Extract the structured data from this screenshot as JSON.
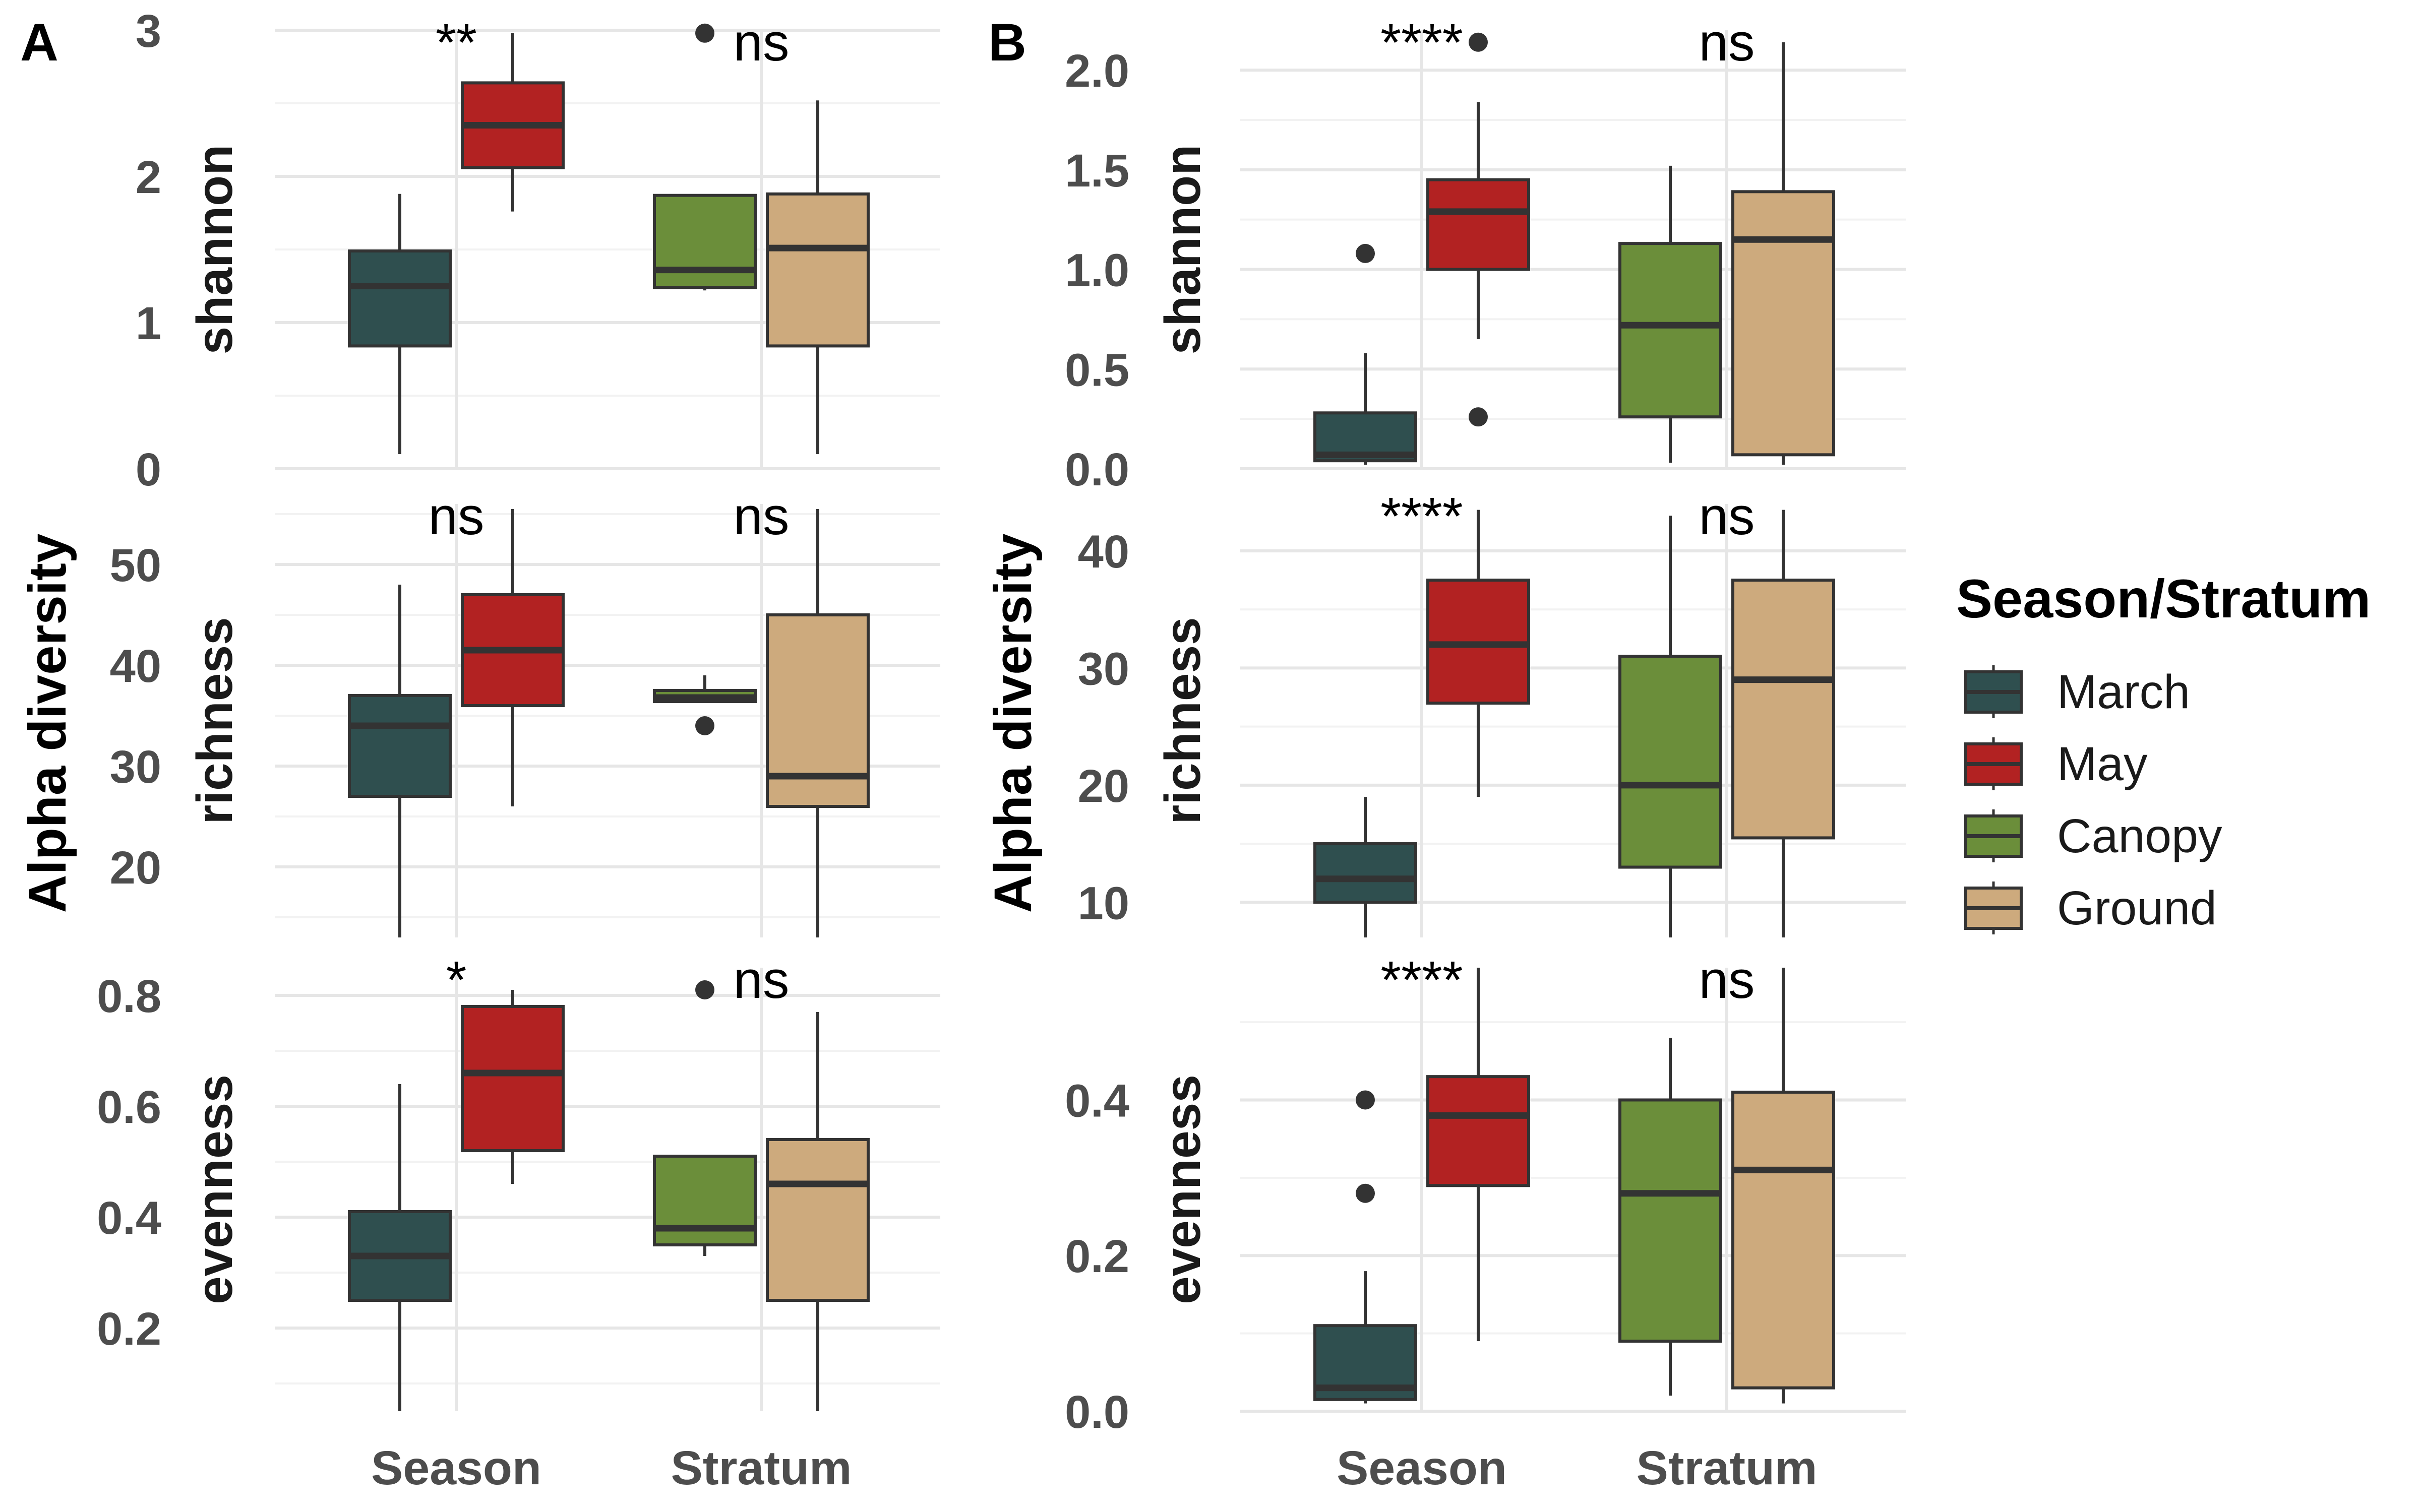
{
  "figure": {
    "panels": [
      "A",
      "B"
    ],
    "ylabel": "Alpha diversity",
    "xcategories": [
      "Season",
      "Stratum"
    ]
  },
  "legend": {
    "title": "Season/Stratum",
    "items": [
      {
        "label": "March",
        "color": "#2f4f4f"
      },
      {
        "label": "May",
        "color": "#b22222"
      },
      {
        "label": "Canopy",
        "color": "#6b8e3a"
      },
      {
        "label": "Ground",
        "color": "#cdaa7d"
      }
    ]
  },
  "chart_data": [
    {
      "type": "box",
      "panel": "A",
      "metric": "shannon",
      "ylim": [
        0,
        3
      ],
      "ticks": [
        0,
        1,
        2,
        3
      ],
      "tick_labels": [
        "0",
        "1",
        "2",
        "3"
      ],
      "categories": [
        "Season",
        "Stratum"
      ],
      "significance": [
        "**",
        "ns"
      ],
      "boxes": [
        {
          "group": "March",
          "category": "Season",
          "min": 0.1,
          "q1": 0.84,
          "median": 1.25,
          "q3": 1.49,
          "max": 1.88,
          "outliers": []
        },
        {
          "group": "May",
          "category": "Season",
          "min": 1.76,
          "q1": 2.06,
          "median": 2.35,
          "q3": 2.64,
          "max": 2.98,
          "outliers": []
        },
        {
          "group": "Canopy",
          "category": "Stratum",
          "min": 1.22,
          "q1": 1.24,
          "median": 1.36,
          "q3": 1.87,
          "max": 1.87,
          "outliers": [
            2.98
          ]
        },
        {
          "group": "Ground",
          "category": "Stratum",
          "min": 0.1,
          "q1": 0.84,
          "median": 1.51,
          "q3": 1.88,
          "max": 2.52,
          "outliers": []
        }
      ]
    },
    {
      "type": "box",
      "panel": "A",
      "metric": "richness",
      "ylim": [
        13,
        56
      ],
      "ticks": [
        20,
        30,
        40,
        50
      ],
      "tick_labels": [
        "20",
        "30",
        "40",
        "50"
      ],
      "categories": [
        "Season",
        "Stratum"
      ],
      "significance": [
        "ns",
        "ns"
      ],
      "boxes": [
        {
          "group": "March",
          "category": "Season",
          "min": 13,
          "q1": 27,
          "median": 34,
          "q3": 37,
          "max": 48,
          "outliers": []
        },
        {
          "group": "May",
          "category": "Season",
          "min": 26,
          "q1": 36,
          "median": 41.5,
          "q3": 47,
          "max": 55.5,
          "outliers": []
        },
        {
          "group": "Canopy",
          "category": "Stratum",
          "min": 36.4,
          "q1": 36.4,
          "median": 36.8,
          "q3": 37.5,
          "max": 39,
          "outliers": [
            34
          ]
        },
        {
          "group": "Ground",
          "category": "Stratum",
          "min": 13,
          "q1": 26,
          "median": 29,
          "q3": 45,
          "max": 55.5,
          "outliers": []
        }
      ]
    },
    {
      "type": "box",
      "panel": "A",
      "metric": "evenness",
      "ylim": [
        0.05,
        0.85
      ],
      "ticks": [
        0.2,
        0.4,
        0.6,
        0.8
      ],
      "tick_labels": [
        "0.2",
        "0.4",
        "0.6",
        "0.8"
      ],
      "categories": [
        "Season",
        "Stratum"
      ],
      "significance": [
        "*",
        "ns"
      ],
      "boxes": [
        {
          "group": "March",
          "category": "Season",
          "min": 0.05,
          "q1": 0.25,
          "median": 0.33,
          "q3": 0.41,
          "max": 0.64,
          "outliers": []
        },
        {
          "group": "May",
          "category": "Season",
          "min": 0.46,
          "q1": 0.52,
          "median": 0.66,
          "q3": 0.78,
          "max": 0.81,
          "outliers": []
        },
        {
          "group": "Canopy",
          "category": "Stratum",
          "min": 0.33,
          "q1": 0.35,
          "median": 0.38,
          "q3": 0.51,
          "max": 0.51,
          "outliers": [
            0.81
          ]
        },
        {
          "group": "Ground",
          "category": "Stratum",
          "min": 0.05,
          "q1": 0.25,
          "median": 0.46,
          "q3": 0.54,
          "max": 0.77,
          "outliers": []
        }
      ]
    },
    {
      "type": "box",
      "panel": "B",
      "metric": "shannon",
      "ylim": [
        0,
        2.2
      ],
      "ticks": [
        0,
        0.5,
        1,
        1.5,
        2
      ],
      "tick_labels": [
        "0.0",
        "0.5",
        "1.0",
        "1.5",
        "2.0"
      ],
      "categories": [
        "Season",
        "Stratum"
      ],
      "significance": [
        "****",
        "ns"
      ],
      "boxes": [
        {
          "group": "March",
          "category": "Season",
          "min": 0.02,
          "q1": 0.04,
          "median": 0.07,
          "q3": 0.28,
          "max": 0.58,
          "outliers": [
            1.08
          ]
        },
        {
          "group": "May",
          "category": "Season",
          "min": 0.65,
          "q1": 1.0,
          "median": 1.29,
          "q3": 1.45,
          "max": 1.84,
          "outliers": [
            2.14,
            0.26
          ]
        },
        {
          "group": "Canopy",
          "category": "Stratum",
          "min": 0.03,
          "q1": 0.26,
          "median": 0.72,
          "q3": 1.13,
          "max": 1.52,
          "outliers": []
        },
        {
          "group": "Ground",
          "category": "Stratum",
          "min": 0.02,
          "q1": 0.07,
          "median": 1.15,
          "q3": 1.39,
          "max": 2.14,
          "outliers": []
        }
      ]
    },
    {
      "type": "box",
      "panel": "B",
      "metric": "richness",
      "ylim": [
        7,
        44
      ],
      "ticks": [
        10,
        20,
        30,
        40
      ],
      "tick_labels": [
        "10",
        "20",
        "30",
        "40"
      ],
      "categories": [
        "Season",
        "Stratum"
      ],
      "significance": [
        "****",
        "ns"
      ],
      "boxes": [
        {
          "group": "March",
          "category": "Season",
          "min": 7,
          "q1": 10,
          "median": 12,
          "q3": 15,
          "max": 19,
          "outliers": []
        },
        {
          "group": "May",
          "category": "Season",
          "min": 19,
          "q1": 27,
          "median": 32,
          "q3": 37.5,
          "max": 43.5,
          "outliers": []
        },
        {
          "group": "Canopy",
          "category": "Stratum",
          "min": 7,
          "q1": 13,
          "median": 20,
          "q3": 31,
          "max": 43,
          "outliers": []
        },
        {
          "group": "Ground",
          "category": "Stratum",
          "min": 7,
          "q1": 15.5,
          "median": 29,
          "q3": 37.5,
          "max": 43.5,
          "outliers": []
        }
      ]
    },
    {
      "type": "box",
      "panel": "B",
      "metric": "evenness",
      "ylim": [
        0,
        0.57
      ],
      "ticks": [
        0,
        0.2,
        0.4
      ],
      "tick_labels": [
        "0.0",
        "0.2",
        "0.4"
      ],
      "categories": [
        "Season",
        "Stratum"
      ],
      "significance": [
        "****",
        "ns"
      ],
      "boxes": [
        {
          "group": "March",
          "category": "Season",
          "min": 0.01,
          "q1": 0.015,
          "median": 0.03,
          "q3": 0.11,
          "max": 0.18,
          "outliers": [
            0.4,
            0.28
          ]
        },
        {
          "group": "May",
          "category": "Season",
          "min": 0.09,
          "q1": 0.29,
          "median": 0.38,
          "q3": 0.43,
          "max": 0.57,
          "outliers": []
        },
        {
          "group": "Canopy",
          "category": "Stratum",
          "min": 0.02,
          "q1": 0.09,
          "median": 0.28,
          "q3": 0.4,
          "max": 0.48,
          "outliers": []
        },
        {
          "group": "Ground",
          "category": "Stratum",
          "min": 0.01,
          "q1": 0.03,
          "median": 0.31,
          "q3": 0.41,
          "max": 0.57,
          "outliers": []
        }
      ]
    }
  ]
}
